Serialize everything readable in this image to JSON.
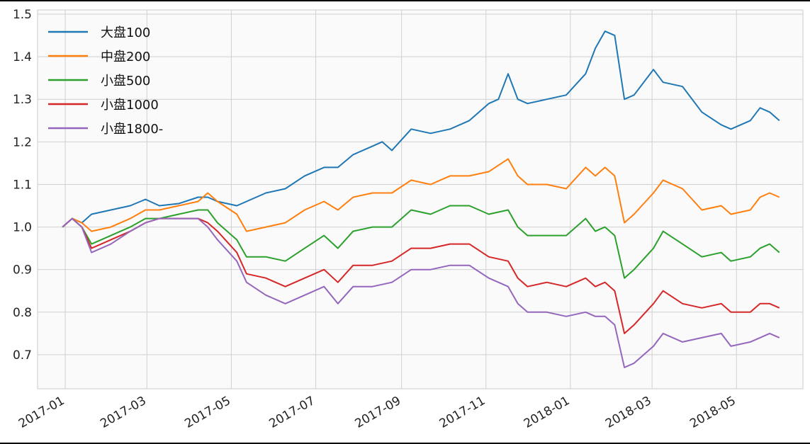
{
  "chart_data": {
    "type": "line",
    "title": "",
    "xlabel": "",
    "ylabel": "",
    "xlim": [
      "2016-12-12",
      "2018-06-18"
    ],
    "ylim": [
      0.62,
      1.51
    ],
    "x_ticks": [
      "2017-01",
      "2017-03",
      "2017-05",
      "2017-07",
      "2017-09",
      "2017-11",
      "2018-01",
      "2018-03",
      "2018-05"
    ],
    "x_tick_dates": [
      "2017-01-01",
      "2017-03-01",
      "2017-05-01",
      "2017-07-01",
      "2017-09-01",
      "2017-11-01",
      "2018-01-01",
      "2018-03-01",
      "2018-05-01"
    ],
    "y_ticks": [
      0.7,
      0.8,
      0.9,
      1.0,
      1.1,
      1.2,
      1.3,
      1.4,
      1.5
    ],
    "y_tick_labels": [
      "0.7",
      "0.8",
      "0.9",
      "1.0",
      "1.1",
      "1.2",
      "1.3",
      "1.4",
      "1.5"
    ],
    "grid": true,
    "legend_position": "top-left",
    "series": [
      {
        "name": "大盘100",
        "color": "#1f77b4",
        "points": [
          [
            "2016-12-30",
            1.0
          ],
          [
            "2017-01-06",
            1.02
          ],
          [
            "2017-01-13",
            1.01
          ],
          [
            "2017-01-20",
            1.03
          ],
          [
            "2017-02-03",
            1.04
          ],
          [
            "2017-02-17",
            1.05
          ],
          [
            "2017-02-28",
            1.065
          ],
          [
            "2017-03-10",
            1.05
          ],
          [
            "2017-03-24",
            1.055
          ],
          [
            "2017-04-07",
            1.07
          ],
          [
            "2017-04-14",
            1.07
          ],
          [
            "2017-04-21",
            1.06
          ],
          [
            "2017-05-05",
            1.05
          ],
          [
            "2017-05-12",
            1.06
          ],
          [
            "2017-05-26",
            1.08
          ],
          [
            "2017-06-09",
            1.09
          ],
          [
            "2017-06-23",
            1.12
          ],
          [
            "2017-07-07",
            1.14
          ],
          [
            "2017-07-17",
            1.14
          ],
          [
            "2017-07-28",
            1.17
          ],
          [
            "2017-08-11",
            1.19
          ],
          [
            "2017-08-18",
            1.2
          ],
          [
            "2017-08-25",
            1.18
          ],
          [
            "2017-09-08",
            1.23
          ],
          [
            "2017-09-22",
            1.22
          ],
          [
            "2017-10-06",
            1.23
          ],
          [
            "2017-10-20",
            1.25
          ],
          [
            "2017-11-03",
            1.29
          ],
          [
            "2017-11-10",
            1.3
          ],
          [
            "2017-11-17",
            1.36
          ],
          [
            "2017-11-24",
            1.3
          ],
          [
            "2017-12-01",
            1.29
          ],
          [
            "2017-12-15",
            1.3
          ],
          [
            "2017-12-29",
            1.31
          ],
          [
            "2018-01-12",
            1.36
          ],
          [
            "2018-01-19",
            1.42
          ],
          [
            "2018-01-26",
            1.46
          ],
          [
            "2018-02-02",
            1.45
          ],
          [
            "2018-02-09",
            1.3
          ],
          [
            "2018-02-16",
            1.31
          ],
          [
            "2018-03-02",
            1.37
          ],
          [
            "2018-03-09",
            1.34
          ],
          [
            "2018-03-23",
            1.33
          ],
          [
            "2018-04-06",
            1.27
          ],
          [
            "2018-04-20",
            1.24
          ],
          [
            "2018-04-27",
            1.23
          ],
          [
            "2018-05-11",
            1.25
          ],
          [
            "2018-05-18",
            1.28
          ],
          [
            "2018-05-25",
            1.27
          ],
          [
            "2018-06-01",
            1.25
          ]
        ]
      },
      {
        "name": "中盘200",
        "color": "#ff7f0e",
        "points": [
          [
            "2016-12-30",
            1.0
          ],
          [
            "2017-01-06",
            1.02
          ],
          [
            "2017-01-13",
            1.01
          ],
          [
            "2017-01-20",
            0.99
          ],
          [
            "2017-02-03",
            1.0
          ],
          [
            "2017-02-17",
            1.02
          ],
          [
            "2017-02-28",
            1.04
          ],
          [
            "2017-03-10",
            1.04
          ],
          [
            "2017-03-24",
            1.05
          ],
          [
            "2017-04-07",
            1.06
          ],
          [
            "2017-04-14",
            1.08
          ],
          [
            "2017-04-21",
            1.06
          ],
          [
            "2017-05-05",
            1.03
          ],
          [
            "2017-05-12",
            0.99
          ],
          [
            "2017-05-26",
            1.0
          ],
          [
            "2017-06-09",
            1.01
          ],
          [
            "2017-06-23",
            1.04
          ],
          [
            "2017-07-07",
            1.06
          ],
          [
            "2017-07-17",
            1.04
          ],
          [
            "2017-07-28",
            1.07
          ],
          [
            "2017-08-11",
            1.08
          ],
          [
            "2017-08-25",
            1.08
          ],
          [
            "2017-09-08",
            1.11
          ],
          [
            "2017-09-22",
            1.1
          ],
          [
            "2017-10-06",
            1.12
          ],
          [
            "2017-10-20",
            1.12
          ],
          [
            "2017-11-03",
            1.13
          ],
          [
            "2017-11-17",
            1.16
          ],
          [
            "2017-11-24",
            1.12
          ],
          [
            "2017-12-01",
            1.1
          ],
          [
            "2017-12-15",
            1.1
          ],
          [
            "2017-12-29",
            1.09
          ],
          [
            "2018-01-12",
            1.14
          ],
          [
            "2018-01-19",
            1.12
          ],
          [
            "2018-01-26",
            1.14
          ],
          [
            "2018-02-02",
            1.12
          ],
          [
            "2018-02-09",
            1.01
          ],
          [
            "2018-02-16",
            1.03
          ],
          [
            "2018-03-02",
            1.08
          ],
          [
            "2018-03-09",
            1.11
          ],
          [
            "2018-03-23",
            1.09
          ],
          [
            "2018-04-06",
            1.04
          ],
          [
            "2018-04-20",
            1.05
          ],
          [
            "2018-04-27",
            1.03
          ],
          [
            "2018-05-11",
            1.04
          ],
          [
            "2018-05-18",
            1.07
          ],
          [
            "2018-05-25",
            1.08
          ],
          [
            "2018-06-01",
            1.07
          ]
        ]
      },
      {
        "name": "小盘500",
        "color": "#2ca02c",
        "points": [
          [
            "2016-12-30",
            1.0
          ],
          [
            "2017-01-06",
            1.02
          ],
          [
            "2017-01-13",
            1.0
          ],
          [
            "2017-01-20",
            0.96
          ],
          [
            "2017-02-03",
            0.98
          ],
          [
            "2017-02-17",
            1.0
          ],
          [
            "2017-02-28",
            1.02
          ],
          [
            "2017-03-10",
            1.02
          ],
          [
            "2017-03-24",
            1.03
          ],
          [
            "2017-04-07",
            1.04
          ],
          [
            "2017-04-14",
            1.04
          ],
          [
            "2017-04-21",
            1.01
          ],
          [
            "2017-05-05",
            0.97
          ],
          [
            "2017-05-12",
            0.93
          ],
          [
            "2017-05-26",
            0.93
          ],
          [
            "2017-06-09",
            0.92
          ],
          [
            "2017-06-23",
            0.95
          ],
          [
            "2017-07-07",
            0.98
          ],
          [
            "2017-07-17",
            0.95
          ],
          [
            "2017-07-28",
            0.99
          ],
          [
            "2017-08-11",
            1.0
          ],
          [
            "2017-08-25",
            1.0
          ],
          [
            "2017-09-08",
            1.04
          ],
          [
            "2017-09-22",
            1.03
          ],
          [
            "2017-10-06",
            1.05
          ],
          [
            "2017-10-20",
            1.05
          ],
          [
            "2017-11-03",
            1.03
          ],
          [
            "2017-11-17",
            1.04
          ],
          [
            "2017-11-24",
            1.0
          ],
          [
            "2017-12-01",
            0.98
          ],
          [
            "2017-12-15",
            0.98
          ],
          [
            "2017-12-29",
            0.98
          ],
          [
            "2018-01-12",
            1.02
          ],
          [
            "2018-01-19",
            0.99
          ],
          [
            "2018-01-26",
            1.0
          ],
          [
            "2018-02-02",
            0.98
          ],
          [
            "2018-02-09",
            0.88
          ],
          [
            "2018-02-16",
            0.9
          ],
          [
            "2018-03-02",
            0.95
          ],
          [
            "2018-03-09",
            0.99
          ],
          [
            "2018-03-23",
            0.96
          ],
          [
            "2018-04-06",
            0.93
          ],
          [
            "2018-04-20",
            0.94
          ],
          [
            "2018-04-27",
            0.92
          ],
          [
            "2018-05-11",
            0.93
          ],
          [
            "2018-05-18",
            0.95
          ],
          [
            "2018-05-25",
            0.96
          ],
          [
            "2018-06-01",
            0.94
          ]
        ]
      },
      {
        "name": "小盘1000",
        "color": "#d62728",
        "points": [
          [
            "2016-12-30",
            1.0
          ],
          [
            "2017-01-06",
            1.02
          ],
          [
            "2017-01-13",
            1.0
          ],
          [
            "2017-01-20",
            0.95
          ],
          [
            "2017-02-03",
            0.97
          ],
          [
            "2017-02-17",
            0.99
          ],
          [
            "2017-02-28",
            1.01
          ],
          [
            "2017-03-10",
            1.02
          ],
          [
            "2017-03-24",
            1.02
          ],
          [
            "2017-04-07",
            1.02
          ],
          [
            "2017-04-14",
            1.01
          ],
          [
            "2017-04-21",
            0.99
          ],
          [
            "2017-05-05",
            0.94
          ],
          [
            "2017-05-12",
            0.89
          ],
          [
            "2017-05-26",
            0.88
          ],
          [
            "2017-06-09",
            0.86
          ],
          [
            "2017-06-23",
            0.88
          ],
          [
            "2017-07-07",
            0.9
          ],
          [
            "2017-07-17",
            0.87
          ],
          [
            "2017-07-28",
            0.91
          ],
          [
            "2017-08-11",
            0.91
          ],
          [
            "2017-08-25",
            0.92
          ],
          [
            "2017-09-08",
            0.95
          ],
          [
            "2017-09-22",
            0.95
          ],
          [
            "2017-10-06",
            0.96
          ],
          [
            "2017-10-20",
            0.96
          ],
          [
            "2017-11-03",
            0.93
          ],
          [
            "2017-11-17",
            0.92
          ],
          [
            "2017-11-24",
            0.88
          ],
          [
            "2017-12-01",
            0.86
          ],
          [
            "2017-12-15",
            0.87
          ],
          [
            "2017-12-29",
            0.86
          ],
          [
            "2018-01-12",
            0.88
          ],
          [
            "2018-01-19",
            0.86
          ],
          [
            "2018-01-26",
            0.87
          ],
          [
            "2018-02-02",
            0.85
          ],
          [
            "2018-02-09",
            0.75
          ],
          [
            "2018-02-16",
            0.77
          ],
          [
            "2018-03-02",
            0.82
          ],
          [
            "2018-03-09",
            0.85
          ],
          [
            "2018-03-23",
            0.82
          ],
          [
            "2018-04-06",
            0.81
          ],
          [
            "2018-04-20",
            0.82
          ],
          [
            "2018-04-27",
            0.8
          ],
          [
            "2018-05-11",
            0.8
          ],
          [
            "2018-05-18",
            0.82
          ],
          [
            "2018-05-25",
            0.82
          ],
          [
            "2018-06-01",
            0.81
          ]
        ]
      },
      {
        "name": "小盘1800-",
        "color": "#9467bd",
        "points": [
          [
            "2016-12-30",
            1.0
          ],
          [
            "2017-01-06",
            1.02
          ],
          [
            "2017-01-13",
            1.0
          ],
          [
            "2017-01-20",
            0.94
          ],
          [
            "2017-02-03",
            0.96
          ],
          [
            "2017-02-17",
            0.99
          ],
          [
            "2017-02-28",
            1.01
          ],
          [
            "2017-03-10",
            1.02
          ],
          [
            "2017-03-24",
            1.02
          ],
          [
            "2017-04-07",
            1.02
          ],
          [
            "2017-04-14",
            1.0
          ],
          [
            "2017-04-21",
            0.97
          ],
          [
            "2017-05-05",
            0.92
          ],
          [
            "2017-05-12",
            0.87
          ],
          [
            "2017-05-26",
            0.84
          ],
          [
            "2017-06-09",
            0.82
          ],
          [
            "2017-06-23",
            0.84
          ],
          [
            "2017-07-07",
            0.86
          ],
          [
            "2017-07-17",
            0.82
          ],
          [
            "2017-07-28",
            0.86
          ],
          [
            "2017-08-11",
            0.86
          ],
          [
            "2017-08-25",
            0.87
          ],
          [
            "2017-09-08",
            0.9
          ],
          [
            "2017-09-22",
            0.9
          ],
          [
            "2017-10-06",
            0.91
          ],
          [
            "2017-10-20",
            0.91
          ],
          [
            "2017-11-03",
            0.88
          ],
          [
            "2017-11-17",
            0.86
          ],
          [
            "2017-11-24",
            0.82
          ],
          [
            "2017-12-01",
            0.8
          ],
          [
            "2017-12-15",
            0.8
          ],
          [
            "2017-12-29",
            0.79
          ],
          [
            "2018-01-12",
            0.8
          ],
          [
            "2018-01-19",
            0.79
          ],
          [
            "2018-01-26",
            0.79
          ],
          [
            "2018-02-02",
            0.77
          ],
          [
            "2018-02-09",
            0.67
          ],
          [
            "2018-02-16",
            0.68
          ],
          [
            "2018-03-02",
            0.72
          ],
          [
            "2018-03-09",
            0.75
          ],
          [
            "2018-03-23",
            0.73
          ],
          [
            "2018-04-06",
            0.74
          ],
          [
            "2018-04-20",
            0.75
          ],
          [
            "2018-04-27",
            0.72
          ],
          [
            "2018-05-11",
            0.73
          ],
          [
            "2018-05-18",
            0.74
          ],
          [
            "2018-05-25",
            0.75
          ],
          [
            "2018-06-01",
            0.74
          ]
        ]
      }
    ]
  }
}
